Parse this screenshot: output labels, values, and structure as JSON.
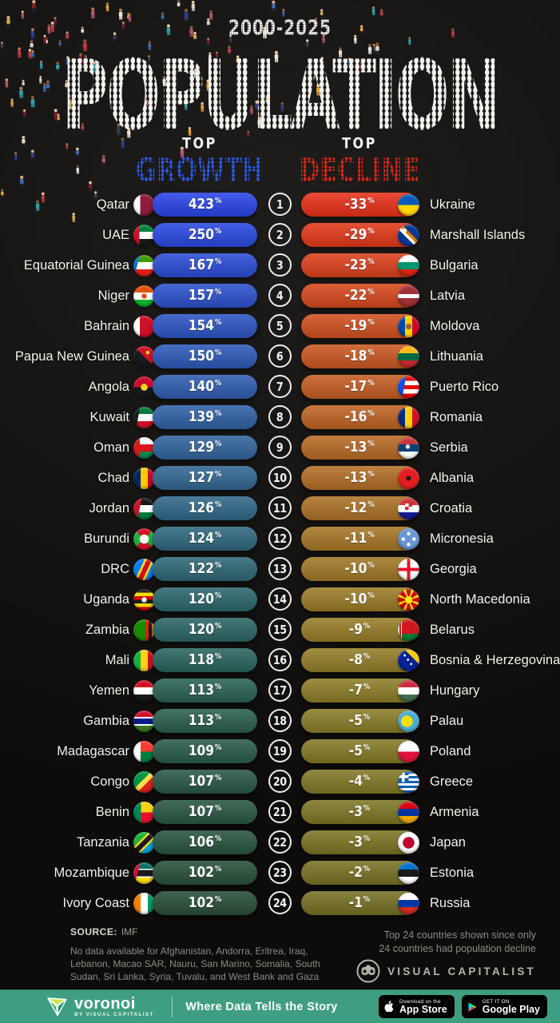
{
  "meta": {
    "title_period": "2000-2025",
    "title": "POPULATION"
  },
  "columns": {
    "growth": {
      "kicker": "TOP",
      "name": "GROWTH",
      "color": "#2c5ce8"
    },
    "decline": {
      "kicker": "TOP",
      "name": "DECLINE",
      "color": "#e02517"
    }
  },
  "labels": {
    "percent": "%"
  },
  "rows": [
    {
      "rank": "1",
      "growth": {
        "country": "Qatar",
        "value": "423",
        "flag": "qatar",
        "bar_color": "#2a45ea"
      },
      "decline": {
        "country": "Ukraine",
        "value": "-33",
        "flag": "ukraine",
        "bar_color": "#ea3118"
      }
    },
    {
      "rank": "2",
      "growth": {
        "country": "UAE",
        "value": "250",
        "flag": "uae",
        "bar_color": "#2b49e2"
      },
      "decline": {
        "country": "Marshall Islands",
        "value": "-29",
        "flag": "marshall",
        "bar_color": "#e4391a"
      }
    },
    {
      "rank": "3",
      "growth": {
        "country": "Equatorial Guinea",
        "value": "167",
        "flag": "eqguinea",
        "bar_color": "#2c4dd9"
      },
      "decline": {
        "country": "Bulgaria",
        "value": "-23",
        "flag": "bulgaria",
        "bar_color": "#de411c"
      }
    },
    {
      "rank": "4",
      "growth": {
        "country": "Niger",
        "value": "157",
        "flag": "niger",
        "bar_color": "#2d52cf"
      },
      "decline": {
        "country": "Latvia",
        "value": "-22",
        "flag": "latvia",
        "bar_color": "#d8491e"
      }
    },
    {
      "rank": "5",
      "growth": {
        "country": "Bahrain",
        "value": "154",
        "flag": "bahrain",
        "bar_color": "#2e56c5"
      },
      "decline": {
        "country": "Moldova",
        "value": "-19",
        "flag": "moldova",
        "bar_color": "#d25120"
      }
    },
    {
      "rank": "6",
      "growth": {
        "country": "Papua New Guinea",
        "value": "150",
        "flag": "png",
        "bar_color": "#2f5abb"
      },
      "decline": {
        "country": "Lithuania",
        "value": "-18",
        "flag": "lithuania",
        "bar_color": "#cc5822"
      }
    },
    {
      "rank": "7",
      "growth": {
        "country": "Angola",
        "value": "140",
        "flag": "angola",
        "bar_color": "#305eb1"
      },
      "decline": {
        "country": "Puerto Rico",
        "value": "-17",
        "flag": "puertorico",
        "bar_color": "#c65e23"
      }
    },
    {
      "rank": "8",
      "growth": {
        "country": "Kuwait",
        "value": "139",
        "flag": "kuwait",
        "bar_color": "#3162a7"
      },
      "decline": {
        "country": "Romania",
        "value": "-16",
        "flag": "romania",
        "bar_color": "#c06424"
      }
    },
    {
      "rank": "9",
      "growth": {
        "country": "Oman",
        "value": "129",
        "flag": "oman",
        "bar_color": "#32659d"
      },
      "decline": {
        "country": "Serbia",
        "value": "-13",
        "flag": "serbia",
        "bar_color": "#ba6a25"
      }
    },
    {
      "rank": "10",
      "growth": {
        "country": "Chad",
        "value": "127",
        "flag": "chad",
        "bar_color": "#336793"
      },
      "decline": {
        "country": "Albania",
        "value": "-13",
        "flag": "albania",
        "bar_color": "#b46f26"
      }
    },
    {
      "rank": "11",
      "growth": {
        "country": "Jordan",
        "value": "126",
        "flag": "jordan",
        "bar_color": "#316889"
      },
      "decline": {
        "country": "Croatia",
        "value": "-12",
        "flag": "croatia",
        "bar_color": "#ae7327"
      }
    },
    {
      "rank": "12",
      "growth": {
        "country": "Burundi",
        "value": "124",
        "flag": "burundi",
        "bar_color": "#2f687f"
      },
      "decline": {
        "country": "Micronesia",
        "value": "-11",
        "flag": "micronesia",
        "bar_color": "#a87727"
      }
    },
    {
      "rank": "13",
      "growth": {
        "country": "DRC",
        "value": "122",
        "flag": "drc",
        "bar_color": "#2e6876"
      },
      "decline": {
        "country": "Georgia",
        "value": "-10",
        "flag": "georgia",
        "bar_color": "#a27a28"
      }
    },
    {
      "rank": "14",
      "growth": {
        "country": "Uganda",
        "value": "120",
        "flag": "uganda",
        "bar_color": "#2c676d"
      },
      "decline": {
        "country": "North Macedonia",
        "value": "-10",
        "flag": "nmacedonia",
        "bar_color": "#9d7c28"
      }
    },
    {
      "rank": "15",
      "growth": {
        "country": "Zambia",
        "value": "120",
        "flag": "zambia",
        "bar_color": "#2b6665"
      },
      "decline": {
        "country": "Belarus",
        "value": "-9",
        "flag": "belarus",
        "bar_color": "#987e28"
      }
    },
    {
      "rank": "16",
      "growth": {
        "country": "Mali",
        "value": "118",
        "flag": "mali",
        "bar_color": "#2a655e"
      },
      "decline": {
        "country": "Bosnia & Herzegovina",
        "value": "-8",
        "flag": "bosnia",
        "bar_color": "#937f28"
      }
    },
    {
      "rank": "17",
      "growth": {
        "country": "Yemen",
        "value": "113",
        "flag": "yemen",
        "bar_color": "#2a6256"
      },
      "decline": {
        "country": "Hungary",
        "value": "-7",
        "flag": "hungary",
        "bar_color": "#8e7e27"
      }
    },
    {
      "rank": "18",
      "growth": {
        "country": "Gambia",
        "value": "113",
        "flag": "gambia",
        "bar_color": "#2a5f50"
      },
      "decline": {
        "country": "Palau",
        "value": "-5",
        "flag": "palau",
        "bar_color": "#8a7d27"
      }
    },
    {
      "rank": "19",
      "growth": {
        "country": "Madagascar",
        "value": "109",
        "flag": "madagascar",
        "bar_color": "#2a5c4b"
      },
      "decline": {
        "country": "Poland",
        "value": "-5",
        "flag": "poland",
        "bar_color": "#867b26"
      }
    },
    {
      "rank": "20",
      "growth": {
        "country": "Congo",
        "value": "107",
        "flag": "congo",
        "bar_color": "#2a5946"
      },
      "decline": {
        "country": "Greece",
        "value": "-4",
        "flag": "greece",
        "bar_color": "#827926"
      }
    },
    {
      "rank": "21",
      "growth": {
        "country": "Benin",
        "value": "107",
        "flag": "benin",
        "bar_color": "#295742"
      },
      "decline": {
        "country": "Armenia",
        "value": "-3",
        "flag": "armenia",
        "bar_color": "#7f7725"
      }
    },
    {
      "rank": "22",
      "growth": {
        "country": "Tanzania",
        "value": "106",
        "flag": "tanzania",
        "bar_color": "#29543e"
      },
      "decline": {
        "country": "Japan",
        "value": "-3",
        "flag": "japan",
        "bar_color": "#7c7525"
      }
    },
    {
      "rank": "23",
      "growth": {
        "country": "Mozambique",
        "value": "102",
        "flag": "mozambique",
        "bar_color": "#28513a"
      },
      "decline": {
        "country": "Estonia",
        "value": "-2",
        "flag": "estonia",
        "bar_color": "#797325"
      }
    },
    {
      "rank": "24",
      "growth": {
        "country": "Ivory Coast",
        "value": "102",
        "flag": "ivorycoast",
        "bar_color": "#284e37"
      },
      "decline": {
        "country": "Russia",
        "value": "-1",
        "flag": "russia",
        "bar_color": "#767124"
      }
    }
  ],
  "chart_data": [
    {
      "type": "bar",
      "title": "TOP GROWTH",
      "subtitle": "POPULATION 2000-2025",
      "unit": "%",
      "categories": [
        "Qatar",
        "UAE",
        "Equatorial Guinea",
        "Niger",
        "Bahrain",
        "Papua New Guinea",
        "Angola",
        "Kuwait",
        "Oman",
        "Chad",
        "Jordan",
        "Burundi",
        "DRC",
        "Uganda",
        "Zambia",
        "Mali",
        "Yemen",
        "Gambia",
        "Madagascar",
        "Congo",
        "Benin",
        "Tanzania",
        "Mozambique",
        "Ivory Coast"
      ],
      "values": [
        423,
        250,
        167,
        157,
        154,
        150,
        140,
        139,
        129,
        127,
        126,
        124,
        122,
        120,
        120,
        118,
        113,
        113,
        109,
        107,
        107,
        106,
        102,
        102
      ]
    },
    {
      "type": "bar",
      "title": "TOP DECLINE",
      "subtitle": "POPULATION 2000-2025",
      "unit": "%",
      "categories": [
        "Ukraine",
        "Marshall Islands",
        "Bulgaria",
        "Latvia",
        "Moldova",
        "Lithuania",
        "Puerto Rico",
        "Romania",
        "Serbia",
        "Albania",
        "Croatia",
        "Micronesia",
        "Georgia",
        "North Macedonia",
        "Belarus",
        "Bosnia & Herzegovina",
        "Hungary",
        "Palau",
        "Poland",
        "Greece",
        "Armenia",
        "Japan",
        "Estonia",
        "Russia"
      ],
      "values": [
        -33,
        -29,
        -23,
        -22,
        -19,
        -18,
        -17,
        -16,
        -13,
        -13,
        -12,
        -11,
        -10,
        -10,
        -9,
        -8,
        -7,
        -5,
        -5,
        -4,
        -3,
        -3,
        -2,
        -1
      ]
    }
  ],
  "footer": {
    "source_label": "SOURCE:",
    "source_value": "IMF",
    "availability_note": "No data available for Afghanistan, Andorra, Eritrea, Iraq, Lebanon, Macao SAR, Nauru, San Marino, Somalia, South Sudan, Sri Lanka, Syria, Tuvalu, and West Bank and Gaza",
    "right_note_lines": [
      "Top 24 countries shown since only",
      "24 countries had population decline"
    ],
    "brand": "VISUAL CAPITALIST"
  },
  "bottom_bar": {
    "brand": "voronoi",
    "brand_sub": "BY VISUAL CAPITALIST",
    "tagline": "Where Data Tells the Story",
    "appstore": {
      "small": "Download on the",
      "big": "App Store"
    },
    "gplay": {
      "small": "GET IT ON",
      "big": "Google Play"
    }
  }
}
